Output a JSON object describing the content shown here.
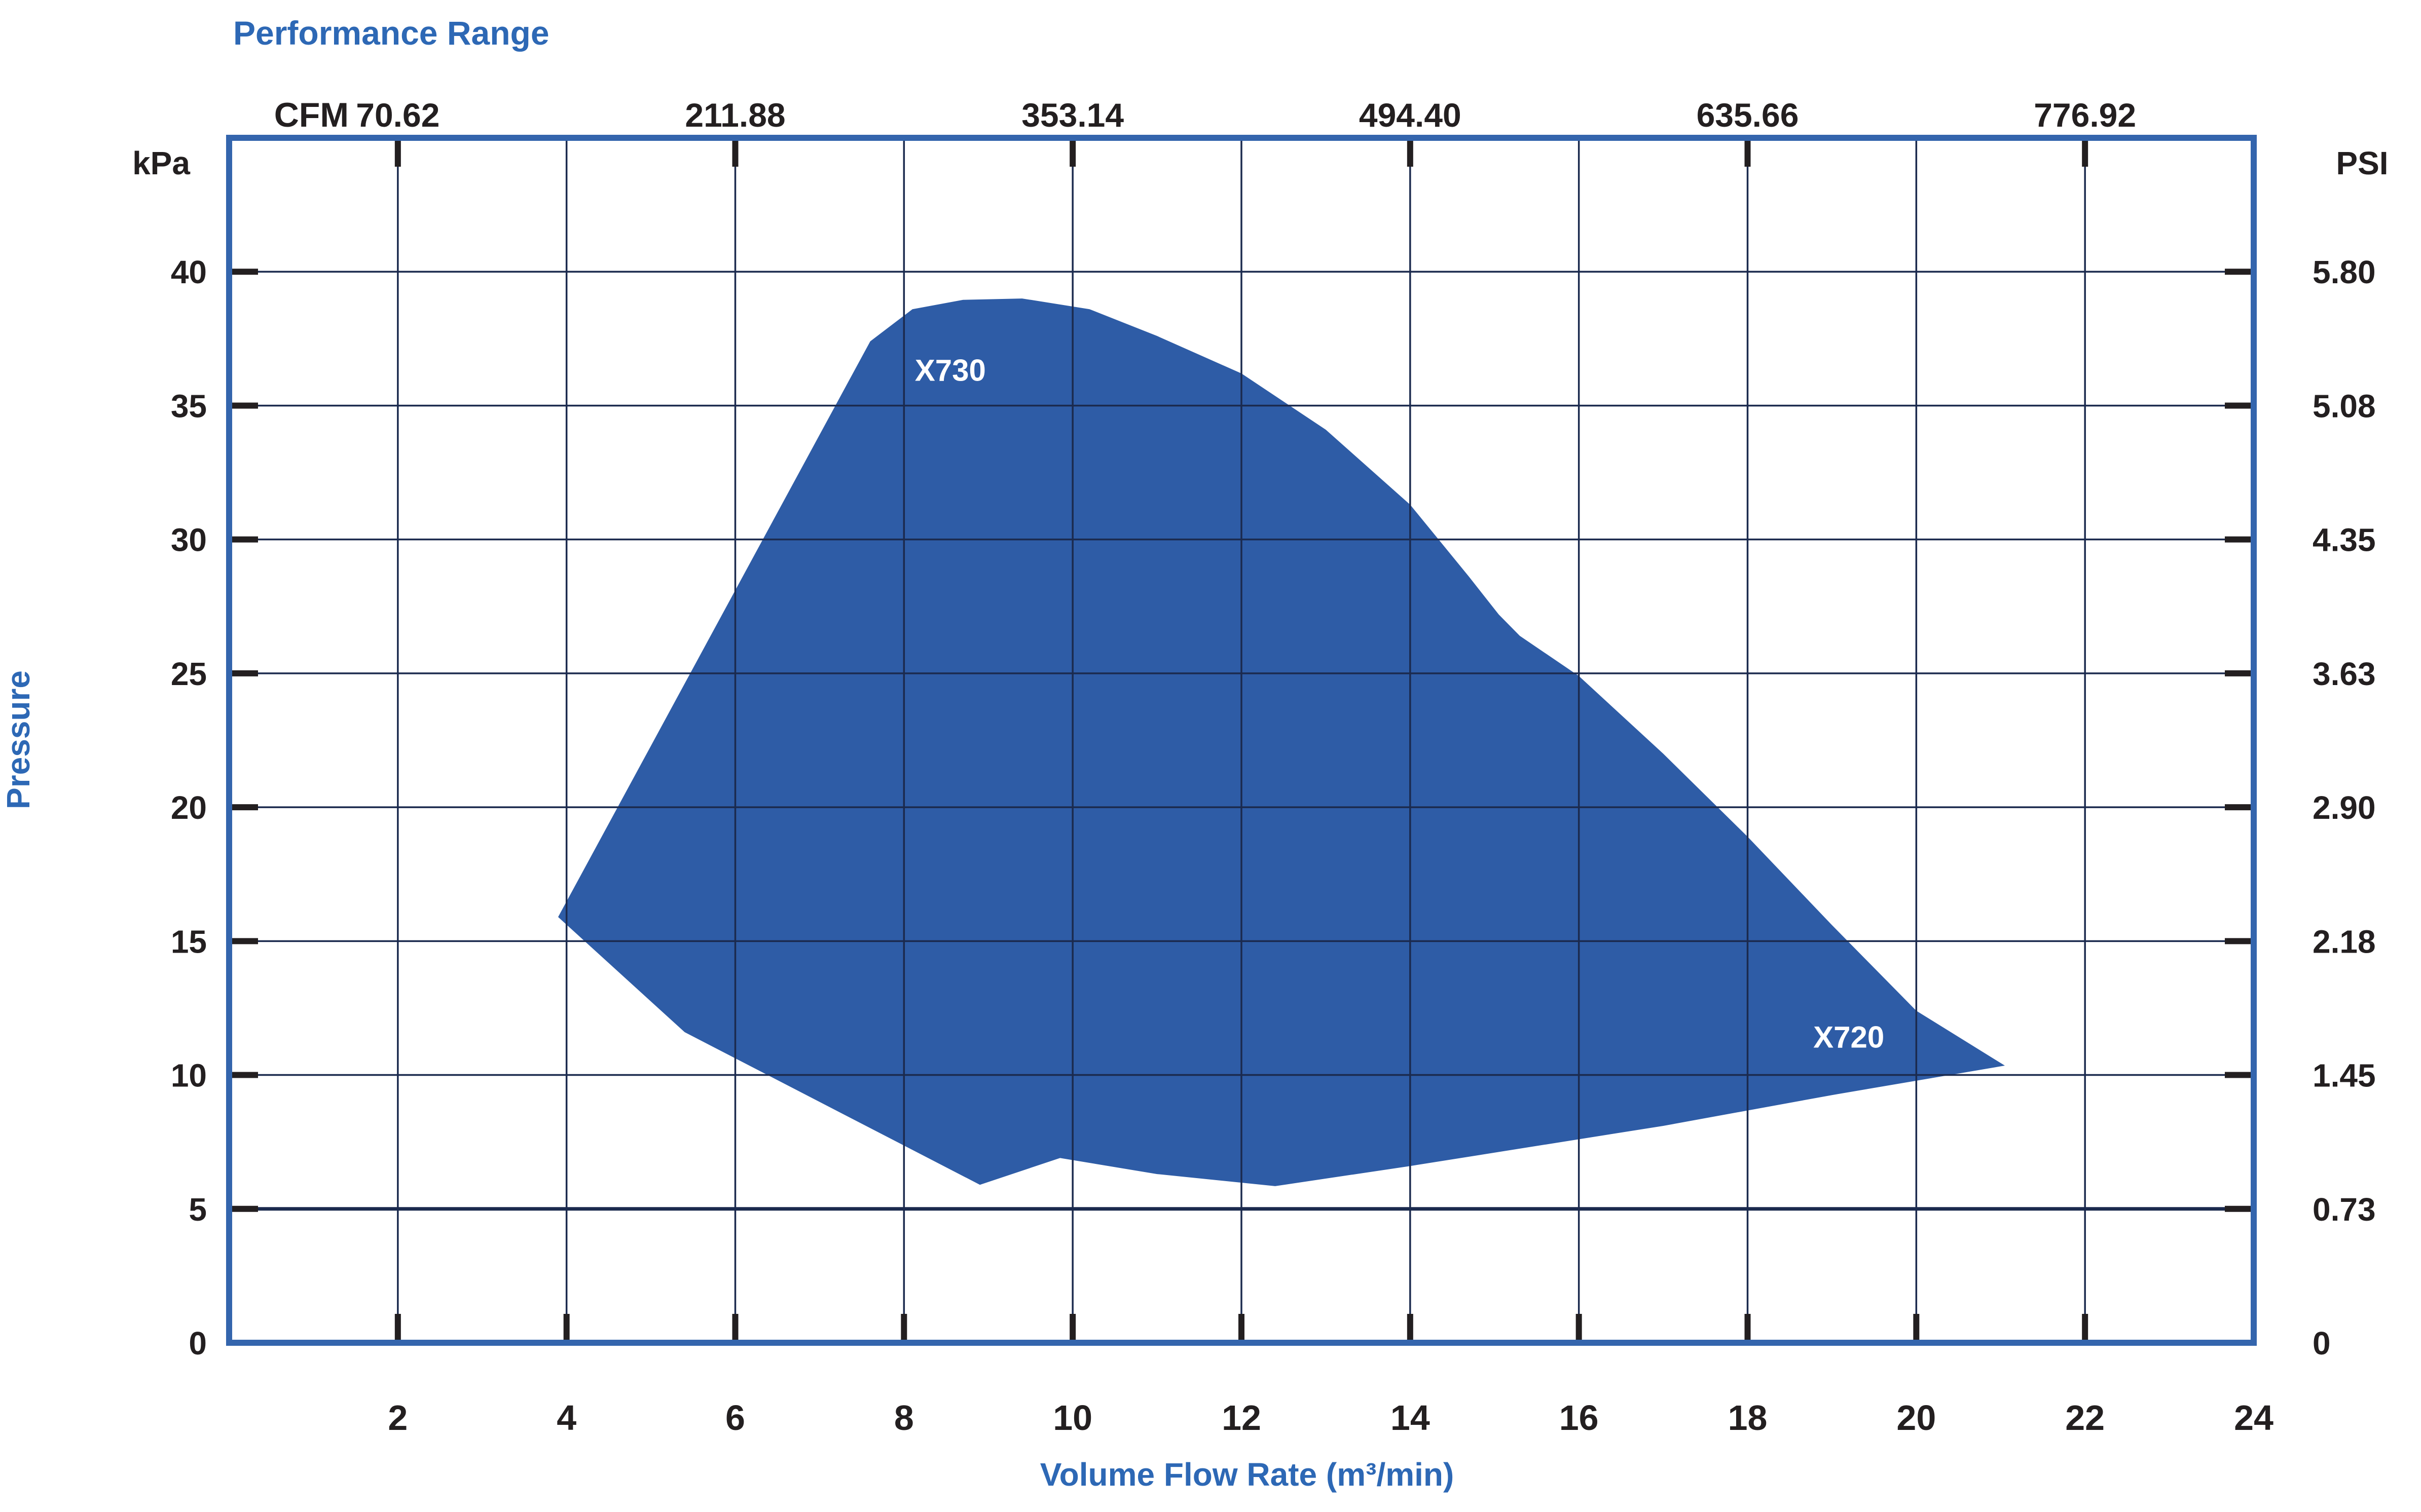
{
  "title": "Performance Range",
  "chart_data": {
    "type": "area",
    "title": "Performance Range",
    "background": "#ffffff",
    "legend": "none",
    "grid": "on",
    "colors": {
      "region_fill": "#2e5ca6",
      "frame": "#3465ad",
      "gridline": "#1b2a4e",
      "tick": "#231f20",
      "axis_text": "#231f20",
      "accent_text": "#2d68b5",
      "region_label_text": "#ffffff"
    },
    "x_axis": {
      "title": "Volume Flow Rate (m³/min)",
      "min": 0,
      "max": 24,
      "gridline_step": 2,
      "tick_values": [
        2,
        4,
        6,
        8,
        10,
        12,
        14,
        16,
        18,
        20,
        22
      ],
      "tick_labels": [
        {
          "value": 2,
          "text": "2"
        },
        {
          "value": 4,
          "text": "4"
        },
        {
          "value": 6,
          "text": "6"
        },
        {
          "value": 8,
          "text": "8"
        },
        {
          "value": 10,
          "text": "10"
        },
        {
          "value": 12,
          "text": "12"
        },
        {
          "value": 14,
          "text": "14"
        },
        {
          "value": 16,
          "text": "16"
        },
        {
          "value": 18,
          "text": "18"
        },
        {
          "value": 20,
          "text": "20"
        },
        {
          "value": 22,
          "text": "22"
        },
        {
          "value": 24,
          "text": "24"
        }
      ]
    },
    "y_axis": {
      "title": "Pressure",
      "unit_left": "kPa",
      "unit_right": "PSI",
      "min": 0,
      "max": 45,
      "gridline_step": 5,
      "emphasized_gridline_value": 5,
      "tick_values": [
        5,
        10,
        15,
        20,
        25,
        30,
        35,
        40
      ],
      "left_labels": [
        {
          "value": 40,
          "text": "40"
        },
        {
          "value": 35,
          "text": "35"
        },
        {
          "value": 30,
          "text": "30"
        },
        {
          "value": 25,
          "text": "25"
        },
        {
          "value": 20,
          "text": "20"
        },
        {
          "value": 15,
          "text": "15"
        },
        {
          "value": 10,
          "text": "10"
        },
        {
          "value": 5,
          "text": "5"
        },
        {
          "value": 0,
          "text": "0"
        }
      ],
      "right_labels": [
        {
          "value": 40,
          "text": "5.80"
        },
        {
          "value": 35,
          "text": "5.08"
        },
        {
          "value": 30,
          "text": "4.35"
        },
        {
          "value": 25,
          "text": "3.63"
        },
        {
          "value": 20,
          "text": "2.90"
        },
        {
          "value": 15,
          "text": "2.18"
        },
        {
          "value": 10,
          "text": "1.45"
        },
        {
          "value": 5,
          "text": "0.73"
        },
        {
          "value": 0,
          "text": "0"
        }
      ]
    },
    "top_axis": {
      "unit": "CFM",
      "tick_values": [
        2,
        6,
        10,
        14,
        18,
        22
      ],
      "labels": [
        {
          "value": 2,
          "text": "70.62"
        },
        {
          "value": 6,
          "text": "211.88"
        },
        {
          "value": 10,
          "text": "353.14"
        },
        {
          "value": 14,
          "text": "494.40"
        },
        {
          "value": 18,
          "text": "635.66"
        },
        {
          "value": 22,
          "text": "776.92"
        }
      ]
    },
    "series": [
      {
        "name": "Performance envelope (X720 / X730)",
        "kind": "filled-region",
        "x_unit": "m3/min",
        "y_unit": "kPa",
        "vertices": [
          [
            3.9,
            15.9
          ],
          [
            7.6,
            37.4
          ],
          [
            8.1,
            38.6
          ],
          [
            8.7,
            38.95
          ],
          [
            9.4,
            39.0
          ],
          [
            10.2,
            38.6
          ],
          [
            11.0,
            37.6
          ],
          [
            12.0,
            36.2
          ],
          [
            13.0,
            34.1
          ],
          [
            14.0,
            31.3
          ],
          [
            14.7,
            28.6
          ],
          [
            15.05,
            27.2
          ],
          [
            15.3,
            26.4
          ],
          [
            16.0,
            24.9
          ],
          [
            17.0,
            22.0
          ],
          [
            18.0,
            18.9
          ],
          [
            19.0,
            15.6
          ],
          [
            20.0,
            12.4
          ],
          [
            21.05,
            10.35
          ],
          [
            19.0,
            9.25
          ],
          [
            17.0,
            8.1
          ],
          [
            16.0,
            7.6
          ],
          [
            14.0,
            6.6
          ],
          [
            12.4,
            5.85
          ],
          [
            11.0,
            6.3
          ],
          [
            9.85,
            6.9
          ],
          [
            8.9,
            5.9
          ],
          [
            5.4,
            11.6
          ]
        ]
      }
    ],
    "region_labels": [
      {
        "text": "X730",
        "x": 8.55,
        "y": 36.3
      },
      {
        "text": "X720",
        "x": 19.2,
        "y": 11.4
      }
    ]
  }
}
